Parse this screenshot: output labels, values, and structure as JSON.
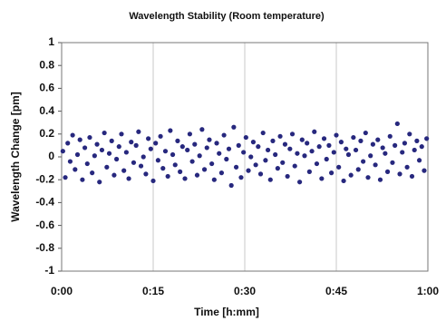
{
  "chart_data": {
    "type": "scatter",
    "title": "Wavelength Stability (Room temperature)",
    "x_label": "Time [h:mm]",
    "y_label": "Wavelength Change [pm]",
    "xlim": [
      0,
      60
    ],
    "xticks": [
      {
        "value": 0,
        "label": "0:00"
      },
      {
        "value": 15,
        "label": "0:15"
      },
      {
        "value": 30,
        "label": "0:30"
      },
      {
        "value": 45,
        "label": "0:45"
      },
      {
        "value": 60,
        "label": "1:00"
      }
    ],
    "ylim": [
      -1,
      1
    ],
    "yticks": [
      -1,
      -0.8,
      -0.6,
      -0.4,
      -0.2,
      0,
      0.2,
      0.4,
      0.6,
      0.8,
      1
    ],
    "grid": "x",
    "series": [
      {
        "color": "#27287e",
        "x": [
          0.2,
          0.6,
          1,
          1.4,
          1.8,
          2.2,
          2.6,
          3,
          3.4,
          3.8,
          4.2,
          4.6,
          5,
          5.4,
          5.8,
          6.2,
          6.6,
          7,
          7.4,
          7.8,
          8.2,
          8.6,
          9,
          9.4,
          9.8,
          10.2,
          10.6,
          11,
          11.4,
          11.8,
          12.2,
          12.6,
          13,
          13.4,
          13.8,
          14.2,
          14.6,
          15,
          15.4,
          15.8,
          16.2,
          16.6,
          17,
          17.4,
          17.8,
          18.2,
          18.6,
          19,
          19.4,
          19.8,
          20.2,
          20.6,
          21,
          21.4,
          21.8,
          22.2,
          22.6,
          23,
          23.4,
          23.8,
          24.2,
          24.6,
          25,
          25.4,
          25.8,
          26.2,
          26.6,
          27,
          27.4,
          27.8,
          28.2,
          28.6,
          29,
          29.4,
          29.8,
          30.2,
          30.6,
          31,
          31.4,
          31.8,
          32.2,
          32.6,
          33,
          33.4,
          33.8,
          34.2,
          34.6,
          35,
          35.4,
          35.8,
          36.2,
          36.6,
          37,
          37.4,
          37.8,
          38.2,
          38.6,
          39,
          39.4,
          39.8,
          40.2,
          40.6,
          41,
          41.4,
          41.8,
          42.2,
          42.6,
          43,
          43.4,
          43.8,
          44.2,
          44.6,
          45,
          45.4,
          45.8,
          46.2,
          46.6,
          47,
          47.4,
          47.8,
          48.2,
          48.6,
          49,
          49.4,
          49.8,
          50.2,
          50.6,
          51,
          51.4,
          51.8,
          52.2,
          52.6,
          53,
          53.4,
          53.8,
          54.2,
          54.6,
          55,
          55.4,
          55.8,
          56.2,
          56.6,
          57,
          57.4,
          57.8,
          58.2,
          58.6,
          59,
          59.4,
          59.8
        ],
        "values": [
          0.05,
          -0.18,
          0.12,
          -0.04,
          0.19,
          -0.11,
          0.02,
          0.15,
          -0.2,
          0.08,
          -0.06,
          0.17,
          -0.14,
          0.01,
          0.11,
          -0.22,
          0.06,
          0.21,
          -0.09,
          0.03,
          0.14,
          -0.16,
          -0.02,
          0.09,
          0.2,
          -0.12,
          0.04,
          -0.19,
          0.13,
          -0.05,
          0.1,
          0.22,
          -0.08,
          0,
          -0.15,
          0.16,
          0.07,
          -0.21,
          0.12,
          -0.03,
          0.18,
          -0.1,
          0.05,
          -0.17,
          0.23,
          0.02,
          -0.07,
          0.14,
          -0.13,
          0.09,
          -0.19,
          0.06,
          0.2,
          -0.04,
          0.11,
          -0.16,
          0.01,
          0.24,
          -0.11,
          0.08,
          0.15,
          -0.06,
          -0.2,
          0.12,
          0.03,
          -0.14,
          0.19,
          -0.02,
          0.07,
          -0.25,
          0.26,
          -0.09,
          0.1,
          -0.18,
          0.04,
          0.17,
          -0.12,
          0,
          0.13,
          -0.07,
          0.09,
          -0.15,
          0.21,
          -0.03,
          0.06,
          -0.2,
          0.14,
          0.02,
          -0.1,
          0.18,
          -0.05,
          0.11,
          -0.17,
          0.07,
          0.2,
          -0.08,
          0.03,
          -0.22,
          0.15,
          0.01,
          0.12,
          -0.13,
          0.05,
          0.22,
          -0.06,
          0.09,
          -0.19,
          0.16,
          -0.02,
          0.1,
          -0.14,
          0.04,
          0.19,
          -0.09,
          0.13,
          -0.21,
          0.07,
          0.02,
          -0.16,
          0.17,
          0.06,
          -0.11,
          0.14,
          -0.04,
          0.21,
          -0.18,
          0.01,
          0.11,
          -0.07,
          0.15,
          -0.2,
          0.08,
          0.03,
          -0.13,
          0.18,
          -0.05,
          0.1,
          0.29,
          -0.15,
          0.04,
          0.12,
          -0.09,
          0.2,
          -0.17,
          0.06,
          0.14,
          -0.03,
          0.09,
          -0.12,
          0.16
        ]
      }
    ]
  }
}
